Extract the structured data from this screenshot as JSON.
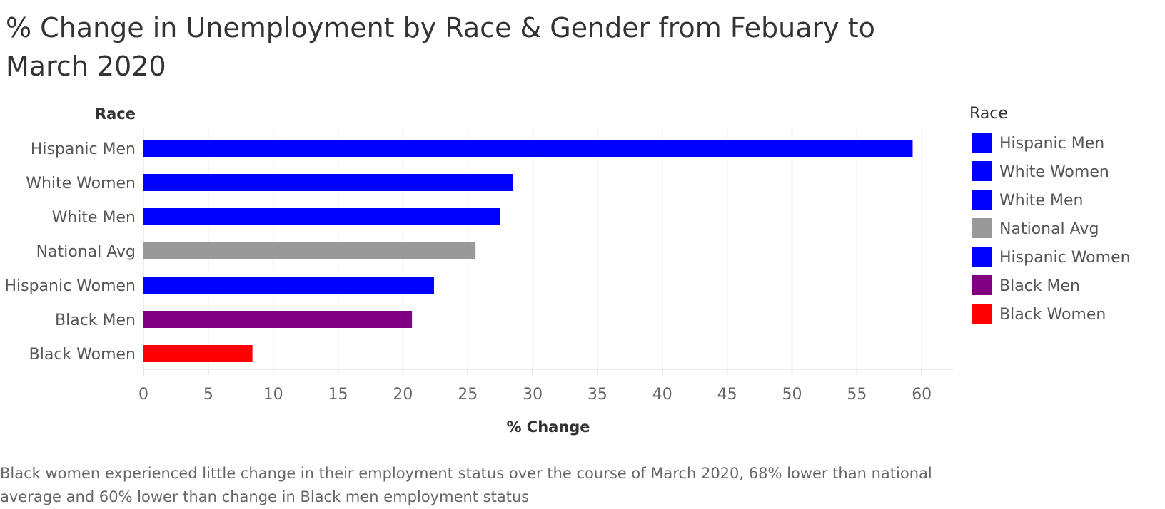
{
  "title": "% Change in Unemployment by Race & Gender from Febuary to March 2020",
  "caption": "Black women experienced little change in their employment status over the course of March 2020, 68% lower than national average and 60% lower than change in Black men employment status",
  "chart_data": {
    "type": "bar",
    "orientation": "horizontal",
    "title": "% Change in Unemployment by Race & Gender from Febuary to March 2020",
    "xlabel": "% Change",
    "ylabel": "Race",
    "categories": [
      "Hispanic Men",
      "White Women",
      "White Men",
      "National Avg",
      "Hispanic Women",
      "Black Men",
      "Black Women"
    ],
    "values": [
      59.3,
      28.5,
      27.5,
      25.6,
      22.4,
      20.7,
      8.4
    ],
    "colors": [
      "#0000ff",
      "#0000ff",
      "#0000ff",
      "#999999",
      "#0000ff",
      "#800080",
      "#ff0000"
    ],
    "xlim": [
      0,
      62
    ],
    "xticks": [
      0,
      5,
      10,
      15,
      20,
      25,
      30,
      35,
      40,
      45,
      50,
      55,
      60
    ],
    "grid": "vertical",
    "legend": {
      "title": "Race",
      "position": "right",
      "items": [
        {
          "label": "Hispanic Men",
          "color": "#0000ff"
        },
        {
          "label": "White Women",
          "color": "#0000ff"
        },
        {
          "label": "White Men",
          "color": "#0000ff"
        },
        {
          "label": "National Avg",
          "color": "#999999"
        },
        {
          "label": "Hispanic Women",
          "color": "#0000ff"
        },
        {
          "label": "Black Men",
          "color": "#800080"
        },
        {
          "label": "Black Women",
          "color": "#ff0000"
        }
      ]
    }
  }
}
